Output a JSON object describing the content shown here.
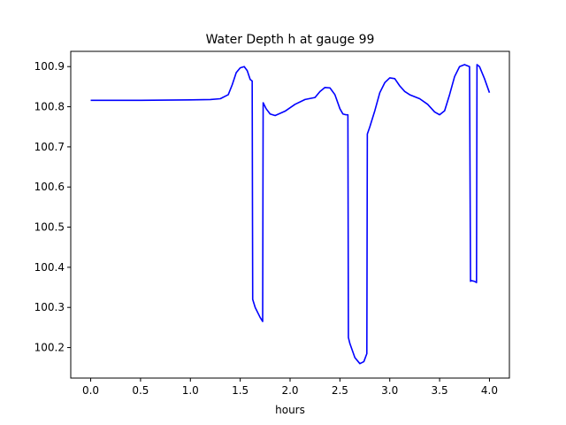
{
  "chart_data": {
    "type": "line",
    "title": "Water Depth h at gauge 99",
    "xlabel": "hours",
    "ylabel": "",
    "xlim": [
      -0.2,
      4.2
    ],
    "ylim": [
      100.124,
      100.938
    ],
    "xticks": [
      0.0,
      0.5,
      1.0,
      1.5,
      2.0,
      2.5,
      3.0,
      3.5,
      4.0
    ],
    "xtick_labels": [
      "0.0",
      "0.5",
      "1.0",
      "1.5",
      "2.0",
      "2.5",
      "3.0",
      "3.5",
      "4.0"
    ],
    "yticks": [
      100.2,
      100.3,
      100.4,
      100.5,
      100.6,
      100.7,
      100.8,
      100.9
    ],
    "ytick_labels": [
      "100.2",
      "100.3",
      "100.4",
      "100.5",
      "100.6",
      "100.7",
      "100.8",
      "100.9"
    ],
    "grid": false,
    "series": [
      {
        "color": "#0000ff",
        "x": [
          0.0,
          0.5,
          1.0,
          1.2,
          1.3,
          1.38,
          1.42,
          1.46,
          1.5,
          1.54,
          1.57,
          1.6,
          1.62,
          1.625,
          1.65,
          1.7,
          1.725,
          1.73,
          1.76,
          1.8,
          1.85,
          1.95,
          2.05,
          2.15,
          2.25,
          2.3,
          2.35,
          2.4,
          2.45,
          2.5,
          2.53,
          2.56,
          2.58,
          2.585,
          2.6,
          2.65,
          2.7,
          2.74,
          2.77,
          2.775,
          2.8,
          2.85,
          2.9,
          2.95,
          3.0,
          3.05,
          3.1,
          3.15,
          3.2,
          3.3,
          3.38,
          3.45,
          3.5,
          3.55,
          3.6,
          3.65,
          3.7,
          3.75,
          3.8,
          3.81,
          3.815,
          3.85,
          3.87,
          3.875,
          3.9,
          3.95,
          4.0
        ],
        "y": [
          100.816,
          100.816,
          100.817,
          100.818,
          100.82,
          100.83,
          100.855,
          100.885,
          100.897,
          100.9,
          100.89,
          100.868,
          100.864,
          100.32,
          100.3,
          100.275,
          100.265,
          100.81,
          100.795,
          100.782,
          100.778,
          100.789,
          100.806,
          100.818,
          100.823,
          100.838,
          100.848,
          100.847,
          100.83,
          100.795,
          100.782,
          100.78,
          100.78,
          100.225,
          100.21,
          100.175,
          100.16,
          100.165,
          100.185,
          100.732,
          100.75,
          100.79,
          100.835,
          100.86,
          100.872,
          100.87,
          100.852,
          100.838,
          100.83,
          100.82,
          100.806,
          100.787,
          100.78,
          100.79,
          100.83,
          100.875,
          100.9,
          100.905,
          100.9,
          100.365,
          100.367,
          100.365,
          100.362,
          100.905,
          100.9,
          100.87,
          100.835
        ]
      }
    ]
  }
}
